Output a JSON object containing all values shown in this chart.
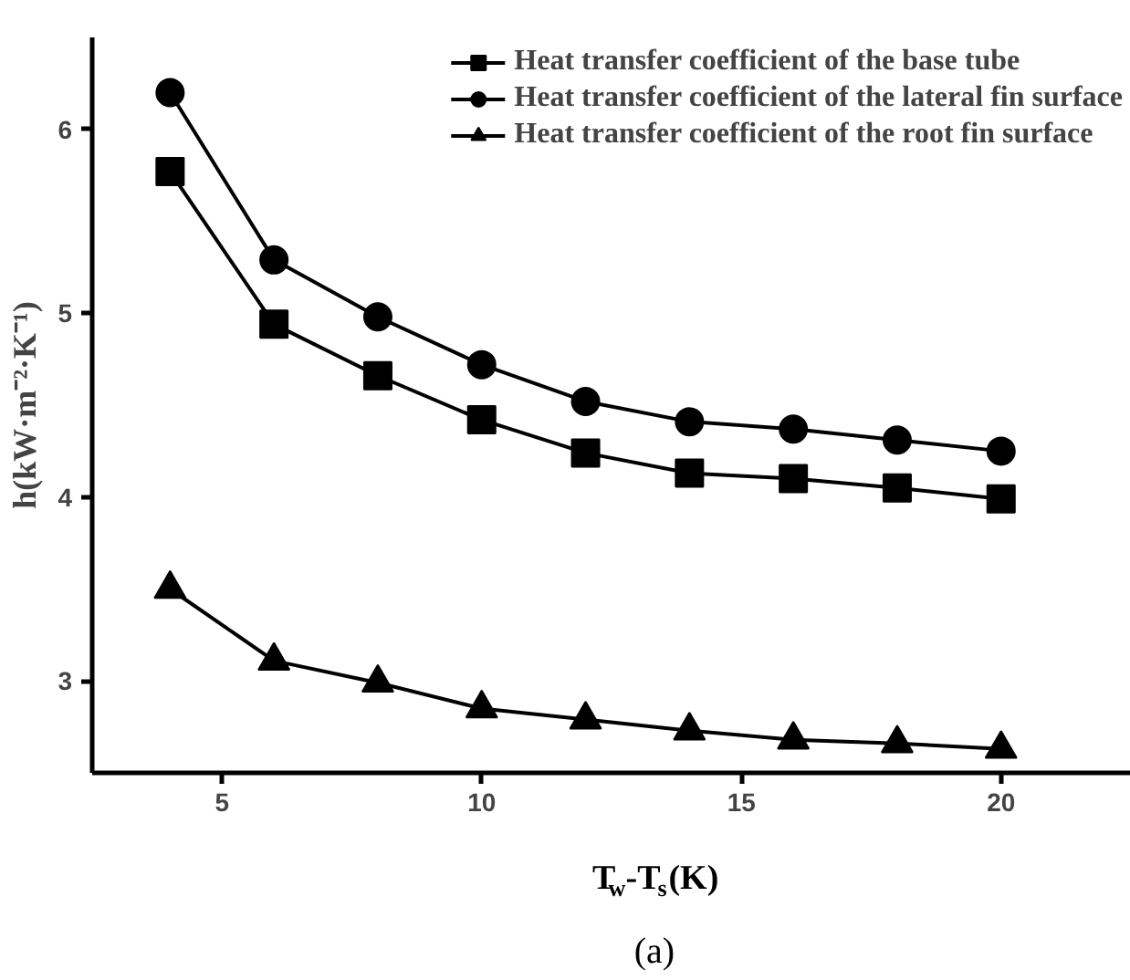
{
  "chart_data": {
    "type": "line",
    "xlabel": "T$_{w}$-T$_{s}$(K)",
    "ylabel": "h(kW·m⁻²·K⁻¹)",
    "annotations": [
      "(a)"
    ],
    "x": [
      4,
      6,
      8,
      10,
      12,
      14,
      16,
      18,
      20
    ],
    "xlim": [
      2.5,
      22.5
    ],
    "xticks": [
      5,
      10,
      15,
      20
    ],
    "ylim": [
      2.5,
      6.5
    ],
    "yticks": [
      3,
      4,
      5,
      6
    ],
    "legend": "top right",
    "grid": false,
    "line_style": "solid",
    "series": [
      {
        "name": "Heat transfer coefficient of the base tube",
        "color": "#000000",
        "marker": "square",
        "values": [
          5.77,
          4.94,
          4.66,
          4.42,
          4.24,
          4.13,
          4.1,
          4.05,
          3.99
        ]
      },
      {
        "name": "Heat transfer coefficient of the lateral fin surface",
        "color": "#000000",
        "marker": "circle",
        "values": [
          6.2,
          5.29,
          4.98,
          4.72,
          4.52,
          4.41,
          4.37,
          4.31,
          4.25
        ]
      },
      {
        "name": "Heat transfer coefficient of the root fin surface",
        "color": "#000000",
        "marker": "triangle",
        "values": [
          3.5,
          3.11,
          2.99,
          2.85,
          2.79,
          2.73,
          2.68,
          2.66,
          2.63
        ]
      }
    ]
  }
}
